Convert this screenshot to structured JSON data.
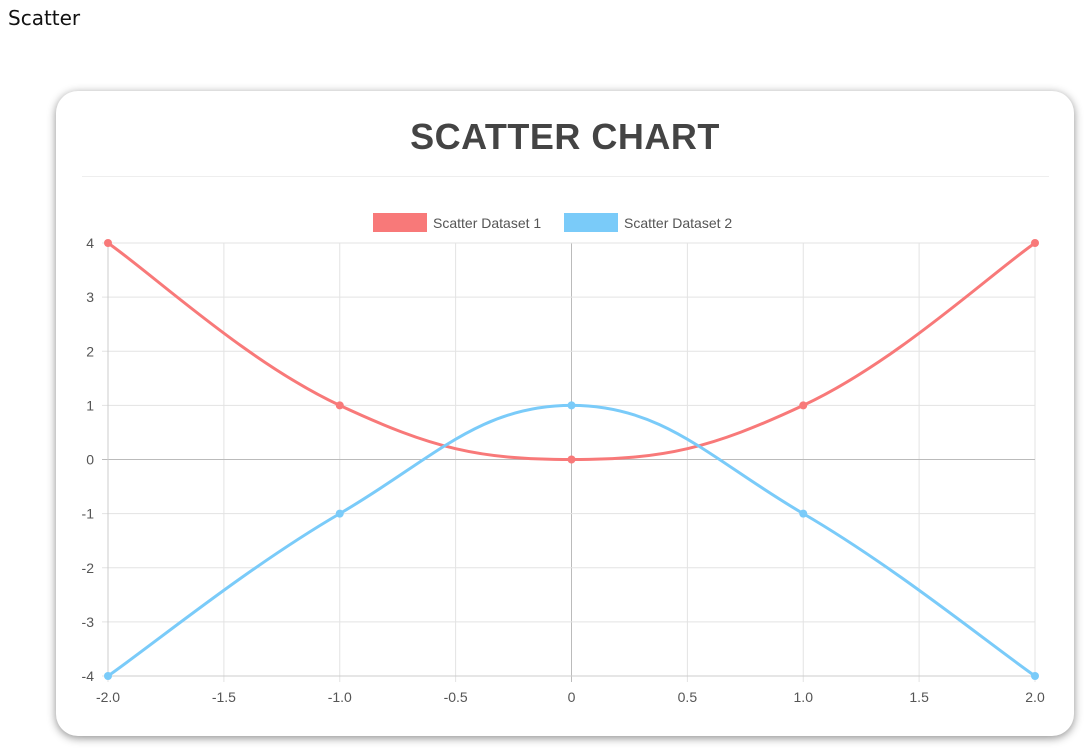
{
  "page": {
    "heading": "Scatter"
  },
  "chart_data": {
    "type": "scatter",
    "title": "SCATTER CHART",
    "xlim": [
      -2.0,
      2.0
    ],
    "ylim": [
      -4,
      4
    ],
    "x_ticks": [
      -2.0,
      -1.5,
      -1.0,
      -0.5,
      0,
      0.5,
      1.0,
      1.5,
      2.0
    ],
    "x_tick_labels": [
      "-2.0",
      "-1.5",
      "-1.0",
      "-0.5",
      "0",
      "0.5",
      "1.0",
      "1.5",
      "2.0"
    ],
    "y_ticks": [
      4,
      3,
      2,
      1,
      0,
      -1,
      -2,
      -3,
      -4
    ],
    "y_tick_labels": [
      "4",
      "3",
      "2",
      "1",
      "0",
      "-1",
      "-2",
      "-3",
      "-4"
    ],
    "grid": true,
    "legend_position": "top-center",
    "series": [
      {
        "name": "Scatter Dataset 1",
        "color": "#f87979",
        "points": [
          [
            -2,
            4
          ],
          [
            -1,
            1
          ],
          [
            0,
            0
          ],
          [
            1,
            1
          ],
          [
            2,
            4
          ]
        ]
      },
      {
        "name": "Scatter Dataset 2",
        "color": "#7acbf9",
        "points": [
          [
            -2,
            -4
          ],
          [
            -1,
            -1
          ],
          [
            0,
            1
          ],
          [
            1,
            -1
          ],
          [
            2,
            -4
          ]
        ]
      }
    ]
  }
}
